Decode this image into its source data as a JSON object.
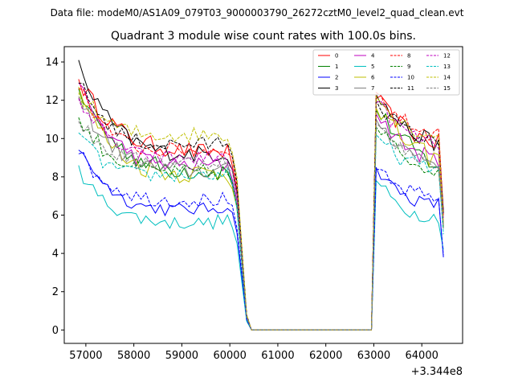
{
  "chart_data": {
    "type": "line",
    "suptitle": "Data file: modeM0/AS1A09_079T03_9000003790_26272cztM0_level2_quad_clean.evt",
    "title": "Quadrant 3 module wise count rates with 100.0s bins.",
    "xlabel": "",
    "ylabel": "",
    "x_offset_text": "+3.344e8",
    "xlim": [
      56550,
      64850
    ],
    "ylim": [
      -0.7,
      14.8
    ],
    "xticks": [
      57000,
      58000,
      59000,
      60000,
      61000,
      62000,
      63000,
      64000
    ],
    "yticks": [
      0,
      2,
      4,
      6,
      8,
      10,
      12,
      14
    ],
    "x_start": 56850,
    "x_step": 100,
    "num_points": 76,
    "gap_start_index": 36,
    "gap_end_index": 61,
    "legend_position": "top-right",
    "series": [
      {
        "name": "0",
        "color": "#ff0000",
        "dash": false,
        "first": [
          13.1,
          12.6,
          12.3,
          11.9,
          11.6,
          11.3,
          11.1,
          10.8,
          10.6,
          10.4,
          10.2,
          10.0,
          9.9,
          9.8,
          9.7,
          9.7,
          9.6,
          9.6,
          9.5,
          9.5,
          9.5,
          9.4,
          9.4,
          9.4,
          9.3,
          9.3,
          9.3,
          9.3,
          9.3,
          9.3,
          9.3,
          9.3
        ],
        "second": [
          12.1,
          11.8,
          11.5,
          11.2,
          11.0,
          10.8,
          10.6,
          10.4,
          10.2,
          10.1,
          10.0,
          9.9,
          9.8,
          9.8
        ],
        "end": 6.0,
        "noise": 0.45
      },
      {
        "name": "1",
        "color": "#008000",
        "dash": false,
        "first": [
          12.6,
          12.0,
          11.6,
          11.2,
          10.8,
          10.5,
          10.2,
          9.9,
          9.7,
          9.5,
          9.3,
          9.1,
          9.0,
          8.9,
          8.8,
          8.7,
          8.6,
          8.5,
          8.5,
          8.4,
          8.4,
          8.4,
          8.4,
          8.3,
          8.3,
          8.3,
          8.3,
          8.3,
          8.3,
          8.3,
          8.3,
          8.2
        ],
        "second": [
          11.5,
          11.2,
          10.9,
          10.6,
          10.3,
          10.0,
          9.8,
          9.6,
          9.4,
          9.2,
          9.0,
          8.8,
          8.7,
          8.6
        ],
        "end": 5.5,
        "noise": 0.5
      },
      {
        "name": "2",
        "color": "#0000ff",
        "dash": false,
        "first": [
          9.4,
          9.0,
          8.7,
          8.4,
          8.1,
          7.8,
          7.5,
          7.3,
          7.1,
          6.9,
          6.8,
          6.7,
          6.6,
          6.5,
          6.5,
          6.4,
          6.4,
          6.4,
          6.3,
          6.3,
          6.3,
          6.3,
          6.3,
          6.3,
          6.3,
          6.3,
          6.3,
          6.3,
          6.4,
          6.4,
          6.4,
          6.5
        ],
        "second": [
          8.5,
          8.2,
          7.9,
          7.6,
          7.4,
          7.2,
          7.0,
          6.9,
          6.8,
          6.7,
          6.7,
          6.6,
          6.6,
          6.6
        ],
        "end": 3.8,
        "noise": 0.35
      },
      {
        "name": "3",
        "color": "#000000",
        "dash": false,
        "first": [
          14.1,
          13.3,
          12.7,
          12.2,
          11.8,
          11.4,
          11.1,
          10.8,
          10.5,
          10.3,
          10.1,
          9.9,
          9.8,
          9.7,
          9.6,
          9.5,
          9.4,
          9.4,
          9.3,
          9.3,
          9.3,
          9.3,
          9.2,
          9.2,
          9.2,
          9.2,
          9.2,
          9.2,
          9.2,
          9.2,
          9.2,
          9.2
        ],
        "second": [
          12.3,
          12.0,
          11.6,
          11.3,
          11.0,
          10.8,
          10.6,
          10.4,
          10.2,
          10.1,
          10.0,
          9.9,
          9.8,
          9.7
        ],
        "end": 6.2,
        "noise": 0.45
      },
      {
        "name": "4",
        "color": "#bf00bf",
        "dash": false,
        "first": [
          12.9,
          12.3,
          11.8,
          11.4,
          11.0,
          10.6,
          10.3,
          10.0,
          9.8,
          9.6,
          9.4,
          9.2,
          9.1,
          9.0,
          8.9,
          8.8,
          8.8,
          8.7,
          8.7,
          8.7,
          8.6,
          8.6,
          8.6,
          8.6,
          8.6,
          8.6,
          8.6,
          8.6,
          8.6,
          8.6,
          8.6,
          8.6
        ],
        "second": [
          11.3,
          11.0,
          10.7,
          10.4,
          10.1,
          9.9,
          9.7,
          9.5,
          9.3,
          9.2,
          9.1,
          9.0,
          8.9,
          8.8
        ],
        "end": 5.6,
        "noise": 0.45
      },
      {
        "name": "5",
        "color": "#00bfbf",
        "dash": false,
        "first": [
          8.6,
          8.0,
          7.6,
          7.3,
          7.0,
          6.8,
          6.6,
          6.4,
          6.3,
          6.2,
          6.1,
          6.0,
          5.9,
          5.8,
          5.8,
          5.7,
          5.7,
          5.7,
          5.6,
          5.6,
          5.6,
          5.6,
          5.6,
          5.6,
          5.6,
          5.6,
          5.6,
          5.6,
          5.6,
          5.7,
          5.7,
          5.8
        ],
        "second": [
          7.8,
          7.5,
          7.2,
          6.9,
          6.7,
          6.5,
          6.3,
          6.2,
          6.1,
          6.0,
          6.0,
          5.9,
          5.9,
          5.9
        ],
        "end": 4.2,
        "noise": 0.35
      },
      {
        "name": "6",
        "color": "#bfbf00",
        "dash": false,
        "first": [
          12.7,
          12.0,
          11.5,
          11.0,
          10.6,
          10.2,
          9.9,
          9.6,
          9.4,
          9.2,
          9.0,
          8.8,
          8.7,
          8.6,
          8.5,
          8.4,
          8.4,
          8.3,
          8.3,
          8.2,
          8.2,
          8.2,
          8.2,
          8.2,
          8.2,
          8.2,
          8.2,
          8.2,
          8.2,
          8.2,
          8.2,
          8.2
        ],
        "second": [
          11.6,
          11.3,
          11.0,
          10.7,
          10.4,
          10.1,
          9.9,
          9.7,
          9.5,
          9.3,
          9.2,
          9.1,
          9.0,
          8.9
        ],
        "end": 5.4,
        "noise": 0.55
      },
      {
        "name": "7",
        "color": "#808080",
        "dash": false,
        "first": [
          12.2,
          11.6,
          11.2,
          10.8,
          10.4,
          10.1,
          9.8,
          9.6,
          9.4,
          9.2,
          9.0,
          8.9,
          8.8,
          8.7,
          8.6,
          8.5,
          8.5,
          8.4,
          8.4,
          8.4,
          8.4,
          8.4,
          8.3,
          8.3,
          8.3,
          8.3,
          8.3,
          8.3,
          8.3,
          8.3,
          8.3,
          8.3
        ],
        "second": [
          11.0,
          10.7,
          10.4,
          10.1,
          9.9,
          9.7,
          9.5,
          9.3,
          9.2,
          9.1,
          9.0,
          8.9,
          8.8,
          8.8
        ],
        "end": 5.5,
        "noise": 0.45
      },
      {
        "name": "8",
        "color": "#ff0000",
        "dash": true,
        "first": [
          12.6,
          12.2,
          11.8,
          11.4,
          11.1,
          10.8,
          10.5,
          10.3,
          10.1,
          9.9,
          9.8,
          9.7,
          9.6,
          9.5,
          9.5,
          9.4,
          9.4,
          9.4,
          9.4,
          9.4,
          9.4,
          9.4,
          9.4,
          9.4,
          9.4,
          9.4,
          9.4,
          9.4,
          9.4,
          9.5,
          9.5,
          9.6
        ],
        "second": [
          12.4,
          12.1,
          11.8,
          11.5,
          11.3,
          11.1,
          10.9,
          10.7,
          10.6,
          10.5,
          10.4,
          10.3,
          10.3,
          10.3
        ],
        "end": 6.1,
        "noise": 0.4
      },
      {
        "name": "9",
        "color": "#008000",
        "dash": true,
        "first": [
          11.1,
          10.7,
          10.3,
          10.0,
          9.8,
          9.5,
          9.3,
          9.1,
          8.9,
          8.8,
          8.7,
          8.6,
          8.5,
          8.4,
          8.4,
          8.3,
          8.3,
          8.3,
          8.2,
          8.2,
          8.2,
          8.2,
          8.2,
          8.2,
          8.2,
          8.2,
          8.2,
          8.2,
          8.2,
          8.2,
          8.2,
          8.2
        ],
        "second": [
          10.6,
          10.3,
          10.0,
          9.7,
          9.5,
          9.3,
          9.1,
          8.9,
          8.8,
          8.7,
          8.6,
          8.5,
          8.5,
          8.5
        ],
        "end": 5.3,
        "noise": 0.45
      },
      {
        "name": "10",
        "color": "#0000ff",
        "dash": true,
        "first": [
          9.2,
          8.9,
          8.6,
          8.3,
          8.1,
          7.9,
          7.7,
          7.5,
          7.4,
          7.3,
          7.2,
          7.1,
          7.0,
          6.9,
          6.9,
          6.9,
          6.8,
          6.8,
          6.8,
          6.8,
          6.8,
          6.8,
          6.8,
          6.8,
          6.8,
          6.8,
          6.8,
          6.8,
          6.8,
          6.8,
          6.8,
          6.8
        ],
        "second": [
          8.4,
          8.1,
          7.9,
          7.7,
          7.5,
          7.4,
          7.3,
          7.2,
          7.1,
          7.1,
          7.0,
          7.0,
          7.0,
          7.0
        ],
        "end": 3.9,
        "noise": 0.4
      },
      {
        "name": "11",
        "color": "#000000",
        "dash": true,
        "first": [
          12.9,
          12.5,
          12.1,
          11.7,
          11.4,
          11.1,
          10.8,
          10.6,
          10.4,
          10.2,
          10.1,
          10.0,
          9.9,
          9.8,
          9.8,
          9.7,
          9.7,
          9.7,
          9.7,
          9.7,
          9.7,
          9.7,
          9.7,
          9.7,
          9.7,
          9.7,
          9.7,
          9.7,
          9.7,
          9.8,
          9.8,
          9.9
        ],
        "second": [
          12.0,
          11.7,
          11.4,
          11.1,
          10.9,
          10.7,
          10.5,
          10.3,
          10.2,
          10.1,
          10.0,
          9.9,
          9.9,
          9.9
        ],
        "end": 6.1,
        "noise": 0.4
      },
      {
        "name": "12",
        "color": "#bf00bf",
        "dash": true,
        "first": [
          12.1,
          11.7,
          11.3,
          11.0,
          10.7,
          10.4,
          10.1,
          9.9,
          9.7,
          9.5,
          9.4,
          9.3,
          9.2,
          9.1,
          9.1,
          9.0,
          9.0,
          9.0,
          9.0,
          9.0,
          9.0,
          9.0,
          9.0,
          9.0,
          9.0,
          9.0,
          9.0,
          9.0,
          9.0,
          9.0,
          9.1,
          9.1
        ],
        "second": [
          11.9,
          11.6,
          11.3,
          11.0,
          10.8,
          10.6,
          10.4,
          10.2,
          10.1,
          10.0,
          9.9,
          9.8,
          9.8,
          9.8
        ],
        "end": 5.8,
        "noise": 0.4
      },
      {
        "name": "13",
        "color": "#00bfbf",
        "dash": true,
        "first": [
          10.3,
          9.9,
          9.6,
          9.3,
          9.0,
          8.8,
          8.6,
          8.5,
          8.4,
          8.3,
          8.2,
          8.2,
          8.1,
          8.1,
          8.1,
          8.1,
          8.1,
          8.1,
          8.1,
          8.1,
          8.1,
          8.1,
          8.1,
          8.1,
          8.1,
          8.1,
          8.1,
          8.1,
          8.1,
          8.1,
          8.1,
          8.1
        ],
        "second": [
          10.2,
          9.9,
          9.6,
          9.4,
          9.2,
          9.0,
          8.9,
          8.8,
          8.7,
          8.6,
          8.5,
          8.5,
          8.4,
          8.4
        ],
        "end": 5.0,
        "noise": 0.4
      },
      {
        "name": "14",
        "color": "#bfbf00",
        "dash": true,
        "first": [
          12.4,
          12.1,
          11.8,
          11.5,
          11.3,
          11.1,
          10.9,
          10.7,
          10.6,
          10.5,
          10.4,
          10.3,
          10.3,
          10.2,
          10.2,
          10.2,
          10.2,
          10.2,
          10.2,
          10.2,
          10.2,
          10.2,
          10.2,
          10.2,
          10.2,
          10.2,
          10.2,
          10.2,
          10.2,
          10.2,
          10.2,
          10.2
        ],
        "second": [
          12.2,
          11.9,
          11.6,
          11.3,
          11.1,
          10.9,
          10.7,
          10.6,
          10.5,
          10.4,
          10.3,
          10.2,
          10.2,
          10.2
        ],
        "end": 5.6,
        "noise": 0.45
      },
      {
        "name": "15",
        "color": "#808080",
        "dash": true,
        "first": [
          10.9,
          10.6,
          10.3,
          10.0,
          9.8,
          9.6,
          9.4,
          9.3,
          9.2,
          9.1,
          9.0,
          8.9,
          8.9,
          8.8,
          8.8,
          8.8,
          8.8,
          8.8,
          8.8,
          8.8,
          8.8,
          8.8,
          8.8,
          8.8,
          8.8,
          8.8,
          8.8,
          8.8,
          8.8,
          8.8,
          8.8,
          8.8
        ],
        "second": [
          10.8,
          10.5,
          10.2,
          9.9,
          9.7,
          9.5,
          9.3,
          9.2,
          9.1,
          9.0,
          8.9,
          8.9,
          8.8,
          8.8
        ],
        "end": 5.3,
        "noise": 0.4
      }
    ]
  }
}
